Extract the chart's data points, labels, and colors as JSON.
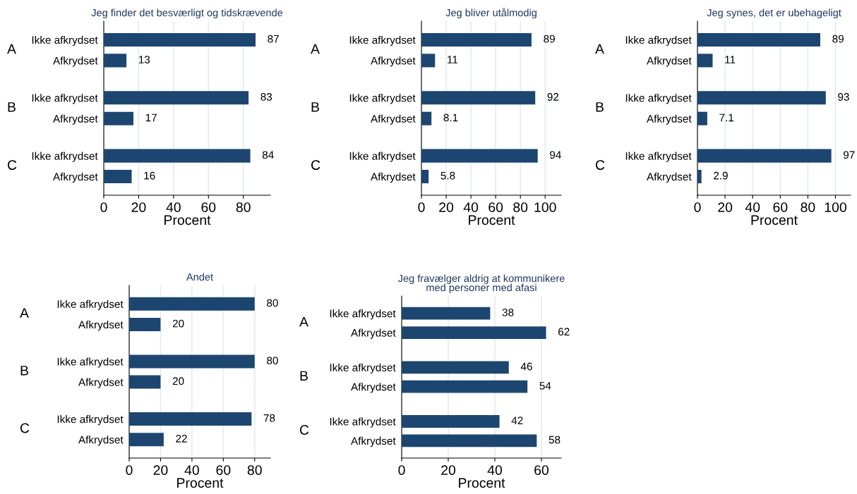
{
  "chart_data": [
    {
      "type": "bar",
      "orientation": "horizontal",
      "title": "Jeg finder det besværligt og tidskrævende",
      "xlabel": "Procent",
      "categories": [
        "Ikke afkrydset",
        "Afkrydset",
        "Ikke afkrydset",
        "Afkrydset",
        "Ikke afkrydset",
        "Afkrydset"
      ],
      "values": [
        87,
        13,
        83,
        17,
        84,
        16
      ],
      "color": "#1c4670",
      "data_labels": true,
      "xlim": [
        0,
        95.5
      ],
      "xticks": [
        0,
        20,
        40,
        60,
        80
      ],
      "grid": "x",
      "annotations": [
        "A",
        "B",
        "C"
      ]
    },
    {
      "type": "bar",
      "orientation": "horizontal",
      "title": "Jeg bliver utålmodig",
      "xlabel": "Procent",
      "categories": [
        "Ikke afkrydset",
        "Afkrydset",
        "Ikke afkrydset",
        "Afkrydset",
        "Ikke afkrydset",
        "Afkrydset"
      ],
      "values": [
        89,
        11,
        92,
        8.1,
        94,
        5.8
      ],
      "color": "#1c4670",
      "data_labels": true,
      "xlim": [
        0,
        113
      ],
      "xticks": [
        0,
        20,
        40,
        60,
        80,
        100
      ],
      "grid": "x",
      "annotations": [
        "A",
        "B",
        "C"
      ]
    },
    {
      "type": "bar",
      "orientation": "horizontal",
      "title": "Jeg synes, det er ubehageligt",
      "xlabel": "Procent",
      "categories": [
        "Ikke afkrydset",
        "Afkrydset",
        "Ikke afkrydset",
        "Afkrydset",
        "Ikke afkrydset",
        "Afkrydset"
      ],
      "values": [
        89,
        11,
        93,
        7.1,
        97,
        2.9
      ],
      "color": "#1c4670",
      "data_labels": true,
      "xlim": [
        0,
        111
      ],
      "xticks": [
        0,
        20,
        40,
        60,
        80,
        100
      ],
      "grid": "x",
      "annotations": [
        "A",
        "B",
        "C"
      ]
    },
    {
      "type": "bar",
      "orientation": "horizontal",
      "title": "Andet",
      "xlabel": "Procent",
      "categories": [
        "Ikke afkrydset",
        "Afkrydset",
        "Ikke afkrydset",
        "Afkrydset",
        "Ikke afkrydset",
        "Afkrydset"
      ],
      "values": [
        80,
        20,
        80,
        20,
        78,
        22
      ],
      "color": "#1c4670",
      "data_labels": true,
      "xlim": [
        0,
        90
      ],
      "xticks": [
        0,
        20,
        40,
        60,
        80
      ],
      "grid": "x",
      "annotations": [
        "A",
        "B",
        "C"
      ]
    },
    {
      "type": "bar",
      "orientation": "horizontal",
      "title": "Jeg fravælger aldrig at kommunikere\nmed personer med afasi",
      "xlabel": "Procent",
      "categories": [
        "Ikke afkrydset",
        "Afkrydset",
        "Ikke afkrydset",
        "Afkrydset",
        "Ikke afkrydset",
        "Afkrydset"
      ],
      "values": [
        38,
        62,
        46,
        54,
        42,
        58
      ],
      "color": "#1c4670",
      "data_labels": true,
      "xlim": [
        0,
        68.5
      ],
      "xticks": [
        0,
        20,
        40,
        60
      ],
      "grid": "x",
      "annotations": [
        "A",
        "B",
        "C"
      ]
    }
  ]
}
